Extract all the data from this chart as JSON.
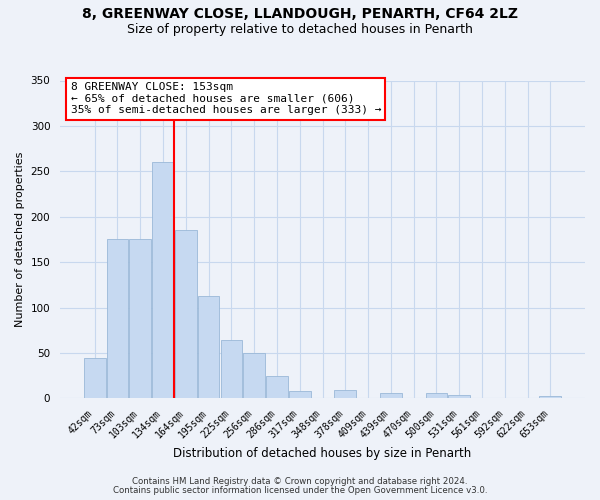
{
  "title_line1": "8, GREENWAY CLOSE, LLANDOUGH, PENARTH, CF64 2LZ",
  "title_line2": "Size of property relative to detached houses in Penarth",
  "xlabel": "Distribution of detached houses by size in Penarth",
  "ylabel": "Number of detached properties",
  "bin_labels": [
    "42sqm",
    "73sqm",
    "103sqm",
    "134sqm",
    "164sqm",
    "195sqm",
    "225sqm",
    "256sqm",
    "286sqm",
    "317sqm",
    "348sqm",
    "378sqm",
    "409sqm",
    "439sqm",
    "470sqm",
    "500sqm",
    "531sqm",
    "561sqm",
    "592sqm",
    "622sqm",
    "653sqm"
  ],
  "bin_values": [
    44,
    175,
    175,
    260,
    185,
    113,
    64,
    50,
    25,
    8,
    0,
    9,
    0,
    6,
    0,
    6,
    4,
    0,
    0,
    0,
    3
  ],
  "bar_color": "#c6d9f1",
  "bar_edge_color": "#9ab8d8",
  "vline_color": "red",
  "vline_pos": 3.5,
  "annotation_title": "8 GREENWAY CLOSE: 153sqm",
  "annotation_line1": "← 65% of detached houses are smaller (606)",
  "annotation_line2": "35% of semi-detached houses are larger (333) →",
  "annotation_box_color": "#ffffff",
  "annotation_box_edge": "red",
  "ylim": [
    0,
    350
  ],
  "yticks": [
    0,
    50,
    100,
    150,
    200,
    250,
    300,
    350
  ],
  "footer_line1": "Contains HM Land Registry data © Crown copyright and database right 2024.",
  "footer_line2": "Contains public sector information licensed under the Open Government Licence v3.0.",
  "background_color": "#eef2f9",
  "grid_color": "#c8d8ee",
  "title1_fontsize": 10,
  "title2_fontsize": 9,
  "ylabel_fontsize": 8,
  "xlabel_fontsize": 8.5,
  "tick_fontsize": 7,
  "footer_fontsize": 6.2
}
